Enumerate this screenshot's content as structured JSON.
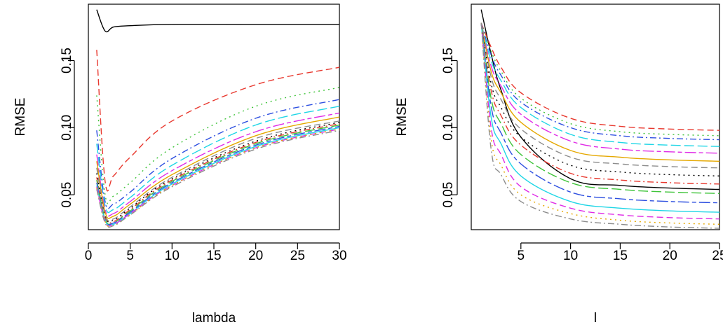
{
  "colors": {
    "black": "#000000",
    "red": "#DF536B",
    "green": "#61D04F",
    "blue": "#2297E6",
    "cyan": "#28E2E5",
    "magenta": "#CD0BBC",
    "series_palette": [
      "#000000",
      "#E8382E",
      "#3FC43A",
      "#2D4FE0",
      "#1FD6E6",
      "#E02BE6",
      "#E5A800",
      "#8C8C8C"
    ]
  },
  "chart_data": [
    {
      "type": "line",
      "xlabel": "lambda",
      "ylabel": "RMSE",
      "xlim": [
        0,
        30
      ],
      "ylim": [
        0.024,
        0.192
      ],
      "x_ticks": [
        "0",
        "5",
        "10",
        "15",
        "20",
        "25",
        "30"
      ],
      "y_ticks": [
        "0.05",
        "0.10",
        "0.15"
      ],
      "grid": false,
      "legend": "none",
      "series": [
        {
          "x": [
            1,
            2,
            3,
            5,
            10,
            20,
            30
          ],
          "values": [
            0.188,
            0.172,
            0.175,
            0.176,
            0.177,
            0.177,
            0.177
          ]
        },
        {
          "x": [
            1,
            2,
            3,
            5,
            10,
            20,
            30
          ],
          "values": [
            0.158,
            0.06,
            0.064,
            0.078,
            0.105,
            0.132,
            0.145
          ]
        },
        {
          "x": [
            1,
            2,
            3,
            5,
            10,
            20,
            30
          ],
          "values": [
            0.124,
            0.05,
            0.049,
            0.059,
            0.085,
            0.116,
            0.13
          ]
        },
        {
          "x": [
            1,
            2,
            3,
            5,
            10,
            20,
            30
          ],
          "values": [
            0.098,
            0.045,
            0.043,
            0.052,
            0.077,
            0.107,
            0.121
          ]
        },
        {
          "x": [
            1,
            2,
            3,
            5,
            10,
            20,
            30
          ],
          "values": [
            0.088,
            0.042,
            0.039,
            0.048,
            0.072,
            0.102,
            0.116
          ]
        },
        {
          "x": [
            1,
            2,
            3,
            5,
            10,
            20,
            30
          ],
          "values": [
            0.08,
            0.039,
            0.036,
            0.045,
            0.068,
            0.097,
            0.111
          ]
        },
        {
          "x": [
            1,
            2,
            3,
            5,
            10,
            20,
            30
          ],
          "values": [
            0.075,
            0.037,
            0.034,
            0.043,
            0.065,
            0.094,
            0.108
          ]
        },
        {
          "x": [
            1,
            2,
            3,
            5,
            10,
            20,
            30
          ],
          "values": [
            0.07,
            0.035,
            0.032,
            0.041,
            0.063,
            0.092,
            0.105
          ]
        },
        {
          "x": [
            1,
            2,
            3,
            5,
            10,
            20,
            30
          ],
          "values": [
            0.066,
            0.034,
            0.031,
            0.04,
            0.062,
            0.09,
            0.104
          ]
        },
        {
          "x": [
            1,
            2,
            3,
            5,
            10,
            20,
            30
          ],
          "values": [
            0.063,
            0.033,
            0.03,
            0.039,
            0.061,
            0.089,
            0.103
          ]
        },
        {
          "x": [
            1,
            2,
            3,
            5,
            10,
            20,
            30
          ],
          "values": [
            0.061,
            0.032,
            0.029,
            0.038,
            0.06,
            0.088,
            0.102
          ]
        },
        {
          "x": [
            1,
            2,
            3,
            5,
            10,
            20,
            30
          ],
          "values": [
            0.059,
            0.031,
            0.029,
            0.037,
            0.059,
            0.087,
            0.101
          ]
        },
        {
          "x": [
            1,
            2,
            3,
            5,
            10,
            20,
            30
          ],
          "values": [
            0.057,
            0.031,
            0.028,
            0.036,
            0.058,
            0.086,
            0.1
          ]
        },
        {
          "x": [
            1,
            2,
            3,
            5,
            10,
            20,
            30
          ],
          "values": [
            0.056,
            0.03,
            0.028,
            0.036,
            0.057,
            0.085,
            0.099
          ]
        },
        {
          "x": [
            1,
            2,
            3,
            5,
            10,
            20,
            30
          ],
          "values": [
            0.055,
            0.03,
            0.027,
            0.035,
            0.057,
            0.085,
            0.099
          ]
        },
        {
          "x": [
            1,
            2,
            3,
            5,
            10,
            20,
            30
          ],
          "values": [
            0.054,
            0.029,
            0.027,
            0.035,
            0.056,
            0.084,
            0.098
          ]
        }
      ]
    },
    {
      "type": "line",
      "xlabel": "l",
      "ylabel": "RMSE",
      "xlim": [
        0,
        25
      ],
      "ylim": [
        0.024,
        0.192
      ],
      "x_ticks": [
        "5",
        "10",
        "15",
        "20",
        "25"
      ],
      "y_ticks": [
        "0.05",
        "0.10",
        "0.15"
      ],
      "grid": false,
      "legend": "none",
      "series": [
        {
          "x": [
            1,
            2,
            3,
            5,
            10,
            15,
            20,
            25
          ],
          "values": [
            0.188,
            0.155,
            0.128,
            0.093,
            0.062,
            0.057,
            0.055,
            0.054
          ]
        },
        {
          "x": [
            1,
            2,
            3,
            5,
            10,
            15,
            20,
            25
          ],
          "values": [
            0.178,
            0.16,
            0.145,
            0.126,
            0.107,
            0.101,
            0.099,
            0.098
          ]
        },
        {
          "x": [
            1,
            2,
            3,
            5,
            10,
            15,
            20,
            25
          ],
          "values": [
            0.178,
            0.157,
            0.142,
            0.122,
            0.103,
            0.097,
            0.095,
            0.094
          ]
        },
        {
          "x": [
            1,
            2,
            3,
            5,
            10,
            15,
            20,
            25
          ],
          "values": [
            0.178,
            0.154,
            0.139,
            0.119,
            0.1,
            0.094,
            0.092,
            0.091
          ]
        },
        {
          "x": [
            1,
            2,
            3,
            5,
            10,
            15,
            20,
            25
          ],
          "values": [
            0.178,
            0.15,
            0.135,
            0.115,
            0.095,
            0.089,
            0.087,
            0.086
          ]
        },
        {
          "x": [
            1,
            2,
            3,
            5,
            10,
            15,
            20,
            25
          ],
          "values": [
            0.178,
            0.146,
            0.131,
            0.11,
            0.09,
            0.084,
            0.082,
            0.081
          ]
        },
        {
          "x": [
            1,
            2,
            3,
            5,
            10,
            15,
            20,
            25
          ],
          "values": [
            0.178,
            0.142,
            0.126,
            0.104,
            0.083,
            0.078,
            0.076,
            0.075
          ]
        },
        {
          "x": [
            1,
            2,
            3,
            5,
            10,
            15,
            20,
            25
          ],
          "values": [
            0.178,
            0.138,
            0.121,
            0.099,
            0.078,
            0.073,
            0.071,
            0.07
          ]
        },
        {
          "x": [
            1,
            2,
            3,
            5,
            10,
            15,
            20,
            25
          ],
          "values": [
            0.178,
            0.133,
            0.115,
            0.093,
            0.072,
            0.067,
            0.065,
            0.064
          ]
        },
        {
          "x": [
            1,
            2,
            3,
            5,
            10,
            15,
            20,
            25
          ],
          "values": [
            0.178,
            0.128,
            0.109,
            0.087,
            0.066,
            0.061,
            0.059,
            0.058
          ]
        },
        {
          "x": [
            1,
            2,
            3,
            5,
            10,
            15,
            20,
            25
          ],
          "values": [
            0.178,
            0.122,
            0.103,
            0.08,
            0.059,
            0.054,
            0.052,
            0.051
          ]
        },
        {
          "x": [
            1,
            2,
            3,
            5,
            10,
            15,
            20,
            25
          ],
          "values": [
            0.178,
            0.116,
            0.096,
            0.073,
            0.052,
            0.047,
            0.045,
            0.044
          ]
        },
        {
          "x": [
            1,
            2,
            3,
            5,
            10,
            15,
            20,
            25
          ],
          "values": [
            0.178,
            0.108,
            0.088,
            0.064,
            0.045,
            0.04,
            0.038,
            0.037
          ]
        },
        {
          "x": [
            1,
            2,
            3,
            5,
            10,
            15,
            20,
            25
          ],
          "values": [
            0.178,
            0.1,
            0.08,
            0.056,
            0.04,
            0.035,
            0.033,
            0.032
          ]
        },
        {
          "x": [
            1,
            2,
            3,
            5,
            10,
            15,
            20,
            25
          ],
          "values": [
            0.178,
            0.092,
            0.072,
            0.05,
            0.036,
            0.031,
            0.029,
            0.028
          ]
        },
        {
          "x": [
            1,
            2,
            3,
            5,
            10,
            15,
            20,
            25
          ],
          "values": [
            0.178,
            0.084,
            0.065,
            0.045,
            0.032,
            0.028,
            0.026,
            0.025
          ]
        }
      ]
    }
  ]
}
